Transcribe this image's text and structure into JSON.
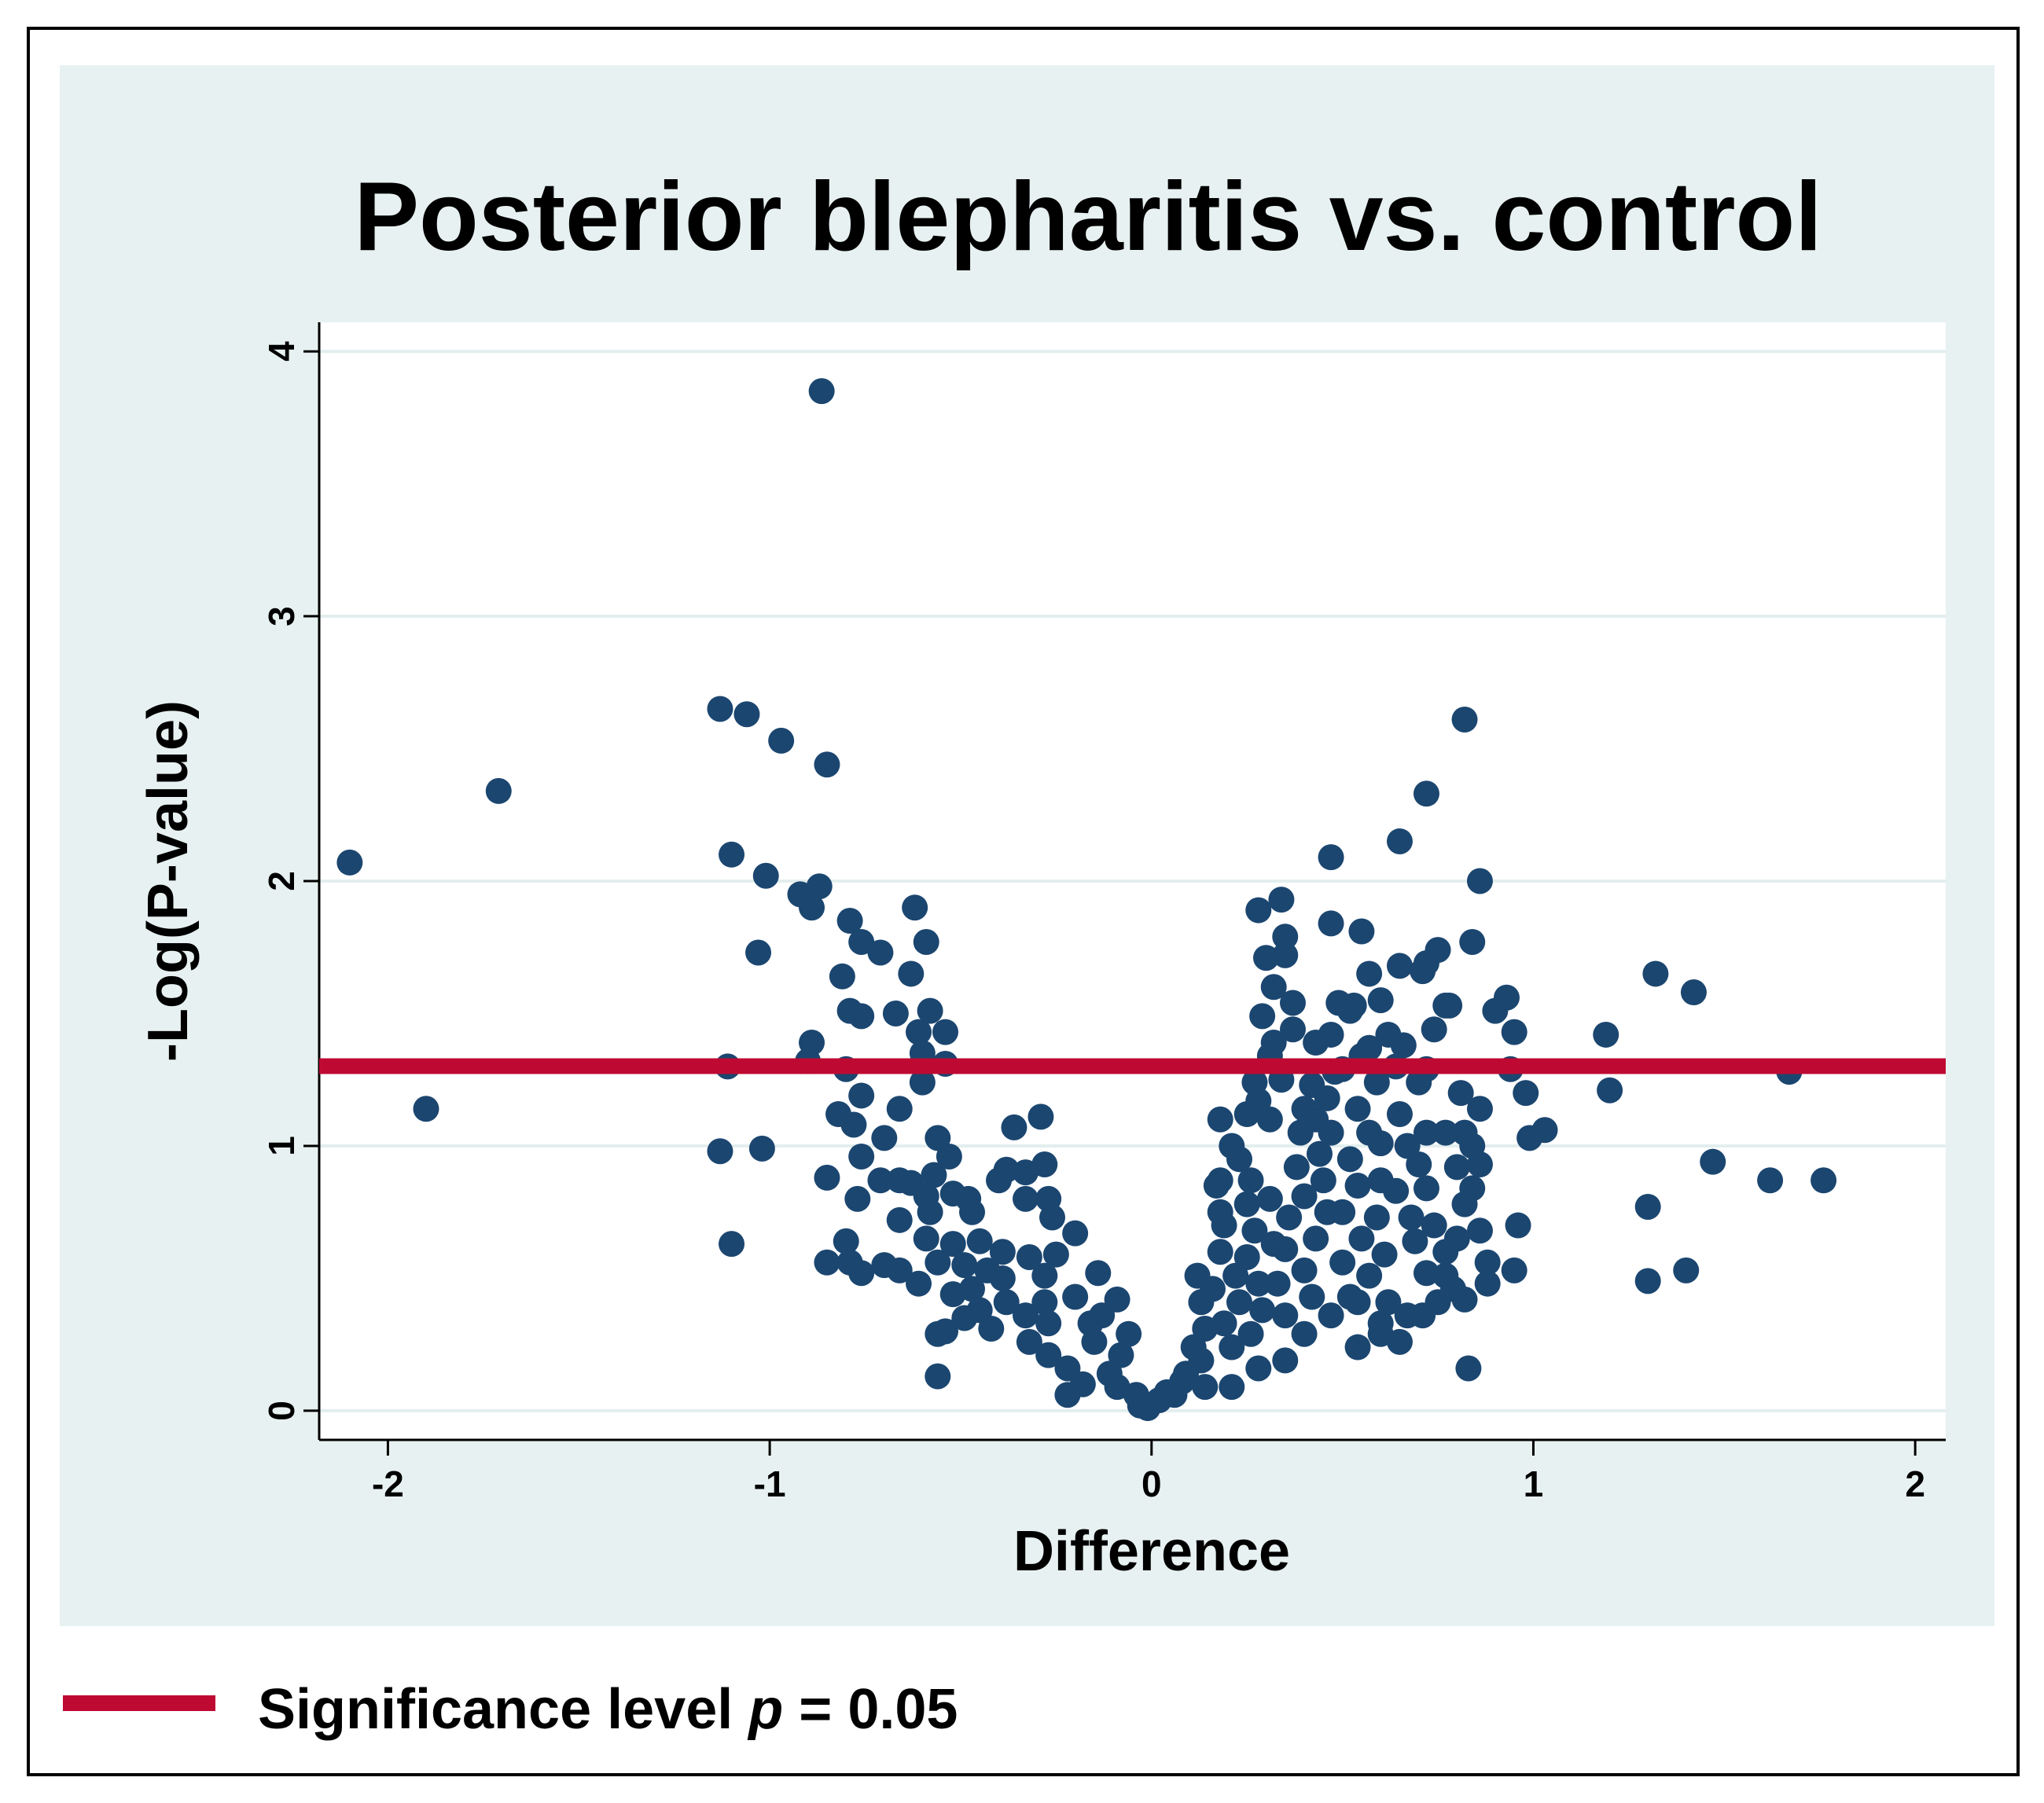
{
  "chart_data": {
    "type": "scatter",
    "title": "Posterior blepharitis vs. control",
    "xlabel": "Difference",
    "ylabel": "-Log(P-value)",
    "xlim": [
      -2.18,
      2.08
    ],
    "ylim": [
      -0.11,
      4.11
    ],
    "xticks": [
      -2,
      -1,
      0,
      1,
      2
    ],
    "yticks": [
      0,
      1,
      2,
      3,
      4
    ],
    "grid": true,
    "color": "#1b4670",
    "reference_line": {
      "y": 1.301,
      "color": "#be0a32",
      "label": [
        "Significance level ",
        "p",
        " = 0.05"
      ]
    },
    "x": [
      -0.864,
      -2.1,
      -1.9,
      -1.71,
      -1.13,
      -1.06,
      -0.97,
      -0.85,
      -1.1,
      -1.01,
      -1.03,
      -0.92,
      -0.87,
      -0.89,
      -1.11,
      -1.13,
      -1.02,
      -1.1,
      -0.89,
      -0.9,
      -0.79,
      -0.76,
      -0.71,
      -0.81,
      -0.62,
      -0.59,
      -0.63,
      -0.79,
      -0.76,
      -0.67,
      -0.58,
      -0.61,
      -0.54,
      -0.6,
      -0.54,
      -0.8,
      -0.6,
      -0.76,
      -0.82,
      -0.78,
      -0.66,
      -0.7,
      -0.76,
      -0.85,
      -0.77,
      -0.71,
      -0.66,
      -0.63,
      -0.66,
      -0.56,
      -0.53,
      -0.57,
      -0.59,
      -0.52,
      -0.48,
      -0.58,
      -0.47,
      -0.36,
      -0.29,
      -0.4,
      -0.38,
      -0.33,
      -0.28,
      -0.33,
      -0.27,
      -0.26,
      -0.2,
      -0.8,
      -0.59,
      -0.52,
      -0.45,
      -0.39,
      -0.25,
      -0.85,
      -0.79,
      -0.76,
      -0.7,
      -0.66,
      -0.56,
      -0.49,
      -0.43,
      -0.32,
      -0.61,
      -0.52,
      -0.47,
      -0.39,
      -0.28,
      -0.14,
      -0.54,
      -0.56,
      -0.49,
      -0.42,
      -0.33,
      -0.28,
      -0.2,
      -0.09,
      -0.56,
      -0.27,
      -0.22,
      -0.15,
      -0.22,
      -0.18,
      -0.11,
      -0.08,
      -0.09,
      -0.04,
      -0.03,
      -0.01,
      -0.06,
      -0.13,
      -0.27,
      -0.32,
      -0.16,
      -0.38,
      -0.45,
      0.82,
      0.72,
      0.65,
      0.47,
      0.86,
      0.34,
      0.28,
      0.47,
      0.55,
      0.35,
      0.84,
      0.75,
      0.72,
      0.65,
      0.71,
      0.57,
      0.3,
      0.35,
      0.32,
      0.37,
      0.49,
      0.53,
      0.6,
      0.77,
      0.78,
      0.93,
      0.9,
      0.95,
      1.32,
      1.42,
      1.19,
      1.2,
      1.67,
      1.47,
      1.62,
      1.76,
      1.3,
      1.4,
      1.3,
      1.03,
      0.99,
      0.98,
      0.94,
      0.96,
      0.95,
      0.86,
      0.81,
      0.86,
      0.8,
      0.84,
      0.82,
      0.86,
      0.8,
      0.88,
      0.88,
      0.79,
      0.82,
      0.83,
      0.72,
      0.7,
      0.72,
      0.68,
      0.69,
      0.72,
      0.71,
      0.65,
      0.62,
      0.66,
      0.64,
      0.7,
      0.65,
      0.67,
      0.6,
      0.6,
      0.64,
      0.59,
      0.61,
      0.57,
      0.62,
      0.6,
      0.54,
      0.55,
      0.59,
      0.54,
      0.57,
      0.52,
      0.54,
      0.5,
      0.55,
      0.5,
      0.52,
      0.47,
      0.43,
      0.47,
      0.48,
      0.46,
      0.42,
      0.43,
      0.47,
      0.39,
      0.44,
      0.38,
      0.45,
      0.4,
      0.46,
      0.36,
      0.43,
      0.35,
      0.4,
      0.33,
      0.42,
      0.35,
      0.4,
      0.35,
      0.37,
      0.32,
      0.31,
      0.29,
      0.34,
      0.28,
      0.31,
      0.27,
      0.25,
      0.21,
      0.18,
      0.23,
      0.26,
      0.31,
      0.25,
      0.18,
      0.19,
      0.27,
      0.32,
      0.25,
      0.18,
      0.22,
      0.28,
      0.16,
      0.23,
      0.29,
      0.19,
      0.26,
      0.14,
      0.21,
      0.28,
      0.21,
      0.13,
      0.09,
      0.14,
      0.06,
      0.08,
      0.02,
      0.04,
      0.11,
      0.13,
      0.12,
      0.18,
      0.17,
      0.4,
      0.52,
      0.54,
      0.6,
      0.67,
      0.75,
      0.77,
      0.77,
      0.74,
      0.77,
      0.82,
      0.84,
      0.72,
      0.74,
      0.57,
      0.5
    ],
    "values": [
      3.85,
      2.07,
      1.14,
      2.34,
      2.65,
      2.63,
      2.53,
      2.44,
      2.1,
      2.02,
      1.73,
      1.95,
      1.98,
      1.9,
      1.3,
      0.98,
      0.99,
      0.63,
      1.39,
      1.32,
      1.85,
      1.77,
      1.73,
      1.64,
      1.9,
      1.77,
      1.65,
      1.51,
      1.49,
      1.5,
      1.51,
      1.43,
      1.43,
      1.35,
      1.31,
      1.29,
      1.24,
      1.19,
      1.12,
      1.08,
      1.14,
      1.03,
      0.96,
      0.88,
      0.8,
      0.87,
      0.87,
      0.86,
      0.72,
      1.03,
      0.96,
      0.89,
      0.81,
      0.82,
      0.8,
      0.75,
      0.75,
      1.07,
      1.11,
      0.87,
      0.91,
      0.9,
      0.93,
      0.8,
      0.8,
      0.73,
      0.67,
      0.64,
      0.65,
      0.63,
      0.64,
      0.6,
      0.59,
      0.56,
      0.56,
      0.52,
      0.55,
      0.53,
      0.56,
      0.55,
      0.53,
      0.58,
      0.48,
      0.44,
      0.46,
      0.5,
      0.51,
      0.52,
      0.3,
      0.29,
      0.35,
      0.31,
      0.36,
      0.41,
      0.43,
      0.42,
      0.13,
      0.21,
      0.16,
      0.26,
      0.06,
      0.1,
      0.14,
      0.21,
      0.09,
      0.06,
      0.02,
      0.01,
      0.29,
      0.36,
      0.33,
      0.26,
      0.33,
      0.41,
      0.38,
      2.61,
      2.33,
      2.15,
      2.09,
      2.0,
      1.93,
      1.89,
      1.84,
      1.81,
      1.79,
      1.77,
      1.74,
      1.69,
      1.68,
      1.66,
      1.65,
      1.71,
      1.72,
      1.6,
      1.54,
      1.54,
      1.53,
      1.55,
      1.53,
      1.53,
      1.56,
      1.51,
      1.43,
      1.65,
      1.58,
      1.42,
      1.21,
      1.28,
      0.94,
      0.87,
      0.87,
      0.77,
      0.53,
      0.49,
      1.06,
      1.03,
      1.2,
      1.29,
      0.7,
      0.53,
      1.14,
      1.2,
      0.93,
      0.92,
      0.84,
      0.78,
      0.68,
      0.65,
      0.56,
      0.48,
      0.46,
      0.42,
      0.16,
      1.05,
      0.93,
      0.84,
      0.73,
      0.64,
      0.52,
      0.36,
      0.26,
      1.42,
      1.38,
      1.3,
      1.24,
      1.12,
      1.0,
      1.01,
      0.87,
      0.83,
      0.73,
      0.59,
      0.51,
      0.41,
      0.29,
      0.24,
      1.34,
      1.24,
      1.14,
      1.05,
      0.95,
      0.85,
      0.75,
      0.65,
      0.56,
      0.43,
      0.36,
      1.39,
      1.42,
      1.28,
      1.18,
      1.23,
      1.1,
      1.05,
      1.05,
      0.97,
      0.92,
      0.87,
      0.81,
      0.75,
      0.73,
      0.65,
      0.61,
      0.53,
      0.48,
      0.43,
      0.36,
      0.29,
      0.19,
      1.44,
      1.39,
      1.34,
      1.49,
      1.25,
      1.17,
      1.1,
      1.24,
      1.12,
      1.0,
      1.1,
      0.95,
      0.87,
      0.8,
      0.78,
      0.87,
      0.7,
      0.68,
      0.63,
      0.58,
      0.6,
      0.51,
      0.48,
      0.46,
      0.41,
      0.38,
      0.33,
      0.29,
      0.31,
      0.24,
      0.16,
      0.09,
      0.19,
      0.14,
      0.09,
      0.06,
      0.11,
      0.04,
      0.07,
      0.24,
      0.41,
      0.51,
      0.75,
      0.85,
      1.14,
      1.51,
      0.41,
      0.33,
      0.36,
      0.41,
      0.51,
      0.6,
      0.7,
      1.05,
      1.05,
      1.0,
      1.29,
      1.44,
      1.37,
      1.29
    ]
  }
}
